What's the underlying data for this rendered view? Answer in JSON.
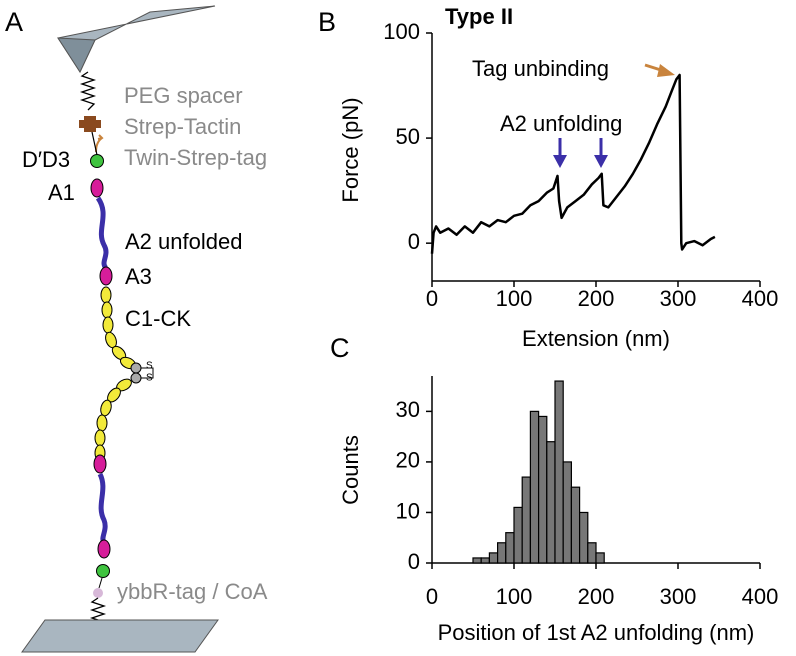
{
  "diagram": {
    "panel": "A",
    "labels": {
      "peg": "PEG spacer",
      "tactin": "Strep-Tactin",
      "twin": "Twin-Strep-tag",
      "dd3": "D′D3",
      "a1": "A1",
      "a2": "A2 unfolded",
      "a3": "A3",
      "c1": "C1-CK",
      "ybbr": "ybbR-tag / CoA",
      "s1": "S",
      "s2": "S"
    }
  },
  "chart_data": [
    {
      "type": "line",
      "panel": "B",
      "title": "Type II",
      "xlabel": "Extension (nm)",
      "ylabel": "Force (pN)",
      "annotations": [
        "Tag unbinding",
        "A2 unfolding"
      ],
      "color": "#000000",
      "x": [
        0,
        2,
        5,
        10,
        20,
        30,
        40,
        50,
        60,
        70,
        80,
        90,
        100,
        110,
        120,
        130,
        140,
        148,
        153,
        155,
        158,
        165,
        175,
        185,
        195,
        203,
        207,
        209,
        215,
        225,
        235,
        245,
        255,
        265,
        275,
        285,
        292,
        298,
        302,
        304,
        305,
        310,
        320,
        330,
        340,
        345
      ],
      "values": [
        -5,
        5,
        8,
        5,
        7,
        4,
        8,
        5,
        10,
        8,
        11,
        10,
        13,
        14,
        18,
        20,
        24,
        26,
        32,
        20,
        12,
        17,
        20,
        23,
        28,
        31,
        33,
        18,
        17,
        22,
        27,
        33,
        40,
        48,
        57,
        65,
        72,
        78,
        80,
        0,
        -3,
        0,
        1,
        -1,
        2,
        3
      ],
      "xlim": [
        0,
        400
      ],
      "ylim": [
        -18,
        100
      ],
      "xticks": [
        0,
        100,
        200,
        300,
        400
      ],
      "yticks": [
        0,
        50,
        100
      ]
    },
    {
      "type": "histogram",
      "panel": "C",
      "xlabel": "Position of 1st A2 unfolding (nm)",
      "ylabel": "Counts",
      "color": "#777777",
      "bins": [
        50,
        60,
        70,
        80,
        90,
        100,
        110,
        120,
        130,
        140,
        150,
        160,
        170,
        180,
        190,
        200,
        210
      ],
      "values": [
        1,
        1,
        2,
        4,
        6,
        11,
        17,
        30,
        29,
        24,
        36,
        20,
        15,
        10,
        4,
        2
      ],
      "xlim": [
        0,
        400
      ],
      "ylim": [
        0,
        37
      ],
      "xticks": [
        0,
        100,
        200,
        300,
        400
      ],
      "yticks": [
        0,
        10,
        20,
        30
      ]
    }
  ]
}
